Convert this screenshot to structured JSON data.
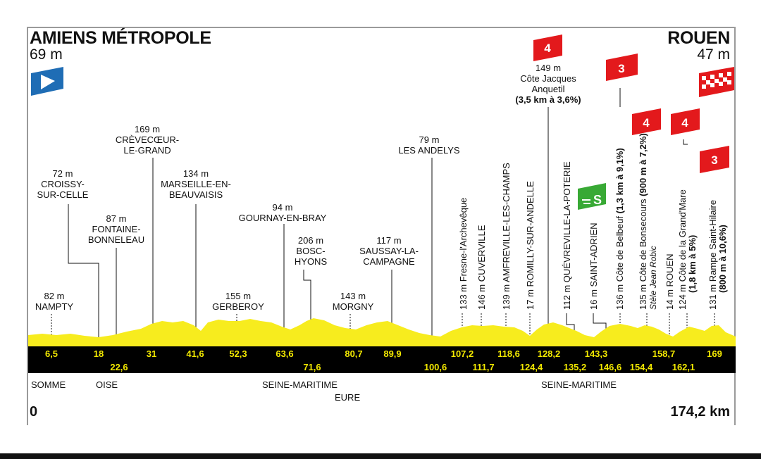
{
  "start": {
    "name": "AMIENS MÉTROPOLE",
    "altitude": "69 m"
  },
  "finish": {
    "name": "ROUEN",
    "altitude": "47 m"
  },
  "labels": [
    {
      "alt": "169 m",
      "name_l1": "CRÈVECŒUR-",
      "name_l2": "LE-GRAND"
    },
    {
      "alt": "72 m",
      "name_l1": "CROISSY-",
      "name_l2": "SUR-CELLE"
    },
    {
      "alt": "134 m",
      "name_l1": "MARSEILLE-EN-",
      "name_l2": "BEAUVAISIS"
    },
    {
      "alt": "87 m",
      "name_l1": "FONTAINE-",
      "name_l2": "BONNELEAU"
    },
    {
      "alt": "94 m",
      "name_l1": "GOURNAY-EN-BRAY",
      "name_l2": ""
    },
    {
      "alt": "206 m",
      "name_l1": "BOSC-",
      "name_l2": "HYONS"
    },
    {
      "alt": "117 m",
      "name_l1": "SAUSSAY-LA-",
      "name_l2": "CAMPAGNE"
    },
    {
      "alt": "79 m",
      "name_l1": "LES ANDELYS",
      "name_l2": ""
    },
    {
      "alt": "82 m",
      "name_l1": "NAMPTY",
      "name_l2": ""
    },
    {
      "alt": "155 m",
      "name_l1": "GERBEROY",
      "name_l2": ""
    },
    {
      "alt": "143 m",
      "name_l1": "MORGNY",
      "name_l2": ""
    }
  ],
  "climb_jacques": {
    "alt": "149 m",
    "name_l1": "Côte Jacques",
    "name_l2": "Anquetil",
    "detail": "(3,5 km à 3,6%)",
    "category": "4"
  },
  "rotated": [
    {
      "text": "133 m Fresne-l'Archevêque"
    },
    {
      "text": "146 m CUVERVILLE"
    },
    {
      "text": "139 m AMFREVILLE-LES-CHAMPS"
    },
    {
      "text": "17 m ROMILLY-SUR-ANDELLE"
    },
    {
      "text": "112 m QUÉVREVILLE-LA-POTERIE"
    },
    {
      "text": "16 m SAINT-ADRIEN"
    },
    {
      "text": "136 m Côte de Belbeuf",
      "detail": "(1,3 km à 9,1%)"
    },
    {
      "text": "135 m Côte de Bonsecours",
      "detail": "(900 m à 7,2%)",
      "sub": "Stèle Jean Robic"
    },
    {
      "text": "14 m ROUEN"
    },
    {
      "text": "124 m Côte de la Grand'Mare",
      "detail": "(1,8 km à 5%)"
    },
    {
      "text": "131 m Rampe Saint-Hilaire",
      "detail": "(800 m à 10,6%)"
    }
  ],
  "climb_badges": [
    "3",
    "4",
    "4",
    "3"
  ],
  "sprint_badge": "S",
  "distances": [
    "6,5",
    "18",
    "22,6",
    "31",
    "41,6",
    "52,3",
    "63,6",
    "71,6",
    "80,7",
    "89,9",
    "100,6",
    "107,2",
    "111,7",
    "118,6",
    "124,4",
    "128,2",
    "135,2",
    "143,3",
    "146,6",
    "154,4",
    "158,7",
    "162,1",
    "169"
  ],
  "regions": [
    "SOMME",
    "OISE",
    "SEINE-MARITIME",
    "EURE",
    "SEINE-MARITIME"
  ],
  "total": {
    "start": "0",
    "end": "174,2 km"
  },
  "colors": {
    "profile": "#f7ec1e",
    "climb_badge": "#e3191c",
    "sprint_badge": "#38a935",
    "start_flag": "#1f6db5",
    "band": "#000000"
  }
}
